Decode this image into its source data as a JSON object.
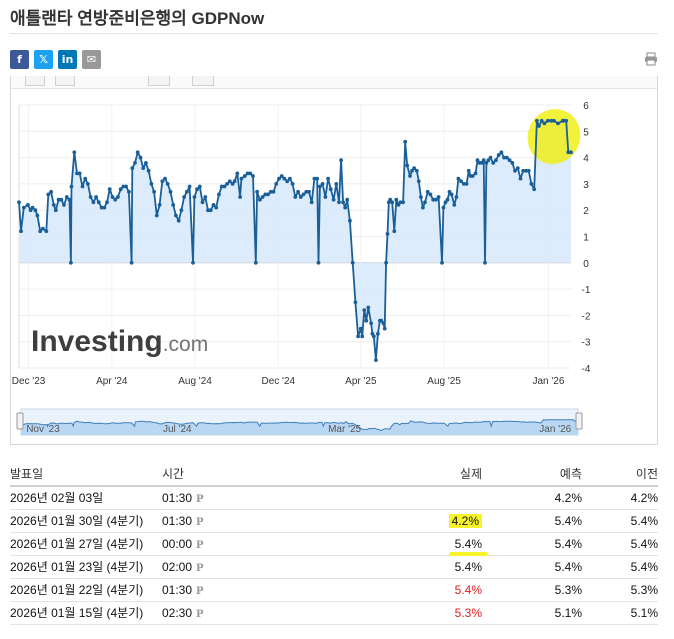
{
  "page": {
    "title": "애틀랜타 연방준비은행의 GDPNow"
  },
  "share_buttons": [
    {
      "name": "facebook",
      "glyph": "f",
      "color": "#3b5998"
    },
    {
      "name": "x",
      "glyph": "𝕏",
      "color": "#1da1f2"
    },
    {
      "name": "linkedin",
      "glyph": "in",
      "color": "#0077b5"
    },
    {
      "name": "email",
      "glyph": "✉",
      "color": "#999999"
    }
  ],
  "icons": {
    "print": "printer-icon"
  },
  "chart_data": {
    "type": "area",
    "title": "",
    "watermark": "Investing.com",
    "xlabel": "",
    "ylabel": "",
    "ylim": [
      -4,
      6
    ],
    "y_ticks": [
      "6",
      "5",
      "4",
      "3",
      "2",
      "1",
      "0",
      "-1",
      "-2",
      "-3",
      "-4"
    ],
    "x_ticks": [
      {
        "label": "Dec '23",
        "x": "2023-12-01"
      },
      {
        "label": "Apr '24",
        "x": "2024-04-01"
      },
      {
        "label": "Aug '24",
        "x": "2024-08-01"
      },
      {
        "label": "Dec '24",
        "x": "2024-12-01"
      },
      {
        "label": "Apr '25",
        "x": "2025-04-01"
      },
      {
        "label": "Aug '25",
        "x": "2025-08-01"
      },
      {
        "label": "Jan '26",
        "x": "2026-01-01"
      }
    ],
    "navigator_ticks": [
      {
        "label": "Nov '23",
        "x": "2023-11-01"
      },
      {
        "label": "Jul '24",
        "x": "2024-07-01"
      },
      {
        "label": "Mar '25",
        "x": "2025-03-01"
      },
      {
        "label": "Jan '26",
        "x": "2026-01-01"
      }
    ],
    "x_range": [
      "2023-11-17",
      "2026-02-03"
    ],
    "line_color": "#1a5f98",
    "fill_color": "#d6e9fb",
    "highlight_color": "#f0ee1a",
    "points": [
      [
        "2023-11-17",
        2.3
      ],
      [
        "2023-11-20",
        1.2
      ],
      [
        "2023-11-24",
        2.1
      ],
      [
        "2023-11-30",
        2.2
      ],
      [
        "2023-12-04",
        2.0
      ],
      [
        "2023-12-07",
        2.1
      ],
      [
        "2023-12-11",
        2.0
      ],
      [
        "2023-12-14",
        1.8
      ],
      [
        "2023-12-18",
        1.2
      ],
      [
        "2023-12-22",
        1.3
      ],
      [
        "2023-12-27",
        1.2
      ],
      [
        "2023-12-30",
        2.6
      ],
      [
        "2024-01-03",
        2.7
      ],
      [
        "2024-01-07",
        2.2
      ],
      [
        "2024-01-10",
        2.0
      ],
      [
        "2024-01-14",
        2.4
      ],
      [
        "2024-01-18",
        2.4
      ],
      [
        "2024-01-22",
        2.2
      ],
      [
        "2024-01-26",
        2.5
      ],
      [
        "2024-01-30",
        2.4
      ],
      [
        "2024-02-01",
        0.0
      ],
      [
        "2024-02-02",
        2.9
      ],
      [
        "2024-02-06",
        4.2
      ],
      [
        "2024-02-10",
        3.4
      ],
      [
        "2024-02-14",
        3.4
      ],
      [
        "2024-02-18",
        2.9
      ],
      [
        "2024-02-22",
        3.2
      ],
      [
        "2024-02-26",
        3.0
      ],
      [
        "2024-03-01",
        2.5
      ],
      [
        "2024-03-05",
        2.3
      ],
      [
        "2024-03-09",
        2.5
      ],
      [
        "2024-03-13",
        2.3
      ],
      [
        "2024-03-17",
        2.1
      ],
      [
        "2024-03-21",
        2.1
      ],
      [
        "2024-03-25",
        2.3
      ],
      [
        "2024-03-29",
        2.8
      ],
      [
        "2024-04-02",
        2.5
      ],
      [
        "2024-04-06",
        2.4
      ],
      [
        "2024-04-10",
        2.5
      ],
      [
        "2024-04-14",
        2.8
      ],
      [
        "2024-04-18",
        2.9
      ],
      [
        "2024-04-22",
        2.9
      ],
      [
        "2024-04-26",
        2.7
      ],
      [
        "2024-04-30",
        0.0
      ],
      [
        "2024-05-01",
        3.6
      ],
      [
        "2024-05-05",
        3.8
      ],
      [
        "2024-05-09",
        4.2
      ],
      [
        "2024-05-13",
        4.0
      ],
      [
        "2024-05-17",
        3.6
      ],
      [
        "2024-05-21",
        3.8
      ],
      [
        "2024-05-25",
        3.5
      ],
      [
        "2024-05-29",
        3.0
      ],
      [
        "2024-06-02",
        2.7
      ],
      [
        "2024-06-06",
        1.8
      ],
      [
        "2024-06-10",
        2.2
      ],
      [
        "2024-06-14",
        3.1
      ],
      [
        "2024-06-18",
        3.2
      ],
      [
        "2024-06-22",
        3.0
      ],
      [
        "2024-06-26",
        2.7
      ],
      [
        "2024-06-30",
        2.2
      ],
      [
        "2024-07-04",
        1.8
      ],
      [
        "2024-07-08",
        1.6
      ],
      [
        "2024-07-12",
        2.0
      ],
      [
        "2024-07-16",
        2.5
      ],
      [
        "2024-07-20",
        2.7
      ],
      [
        "2024-07-24",
        2.9
      ],
      [
        "2024-07-29",
        0.0
      ],
      [
        "2024-07-31",
        2.5
      ],
      [
        "2024-08-04",
        2.8
      ],
      [
        "2024-08-08",
        2.9
      ],
      [
        "2024-08-12",
        2.3
      ],
      [
        "2024-08-16",
        2.5
      ],
      [
        "2024-08-20",
        2.0
      ],
      [
        "2024-08-24",
        2.0
      ],
      [
        "2024-08-28",
        2.2
      ],
      [
        "2024-09-01",
        2.1
      ],
      [
        "2024-09-05",
        2.6
      ],
      [
        "2024-09-09",
        2.9
      ],
      [
        "2024-09-13",
        2.9
      ],
      [
        "2024-09-17",
        3.0
      ],
      [
        "2024-09-21",
        3.1
      ],
      [
        "2024-09-25",
        3.0
      ],
      [
        "2024-09-28",
        3.1
      ],
      [
        "2024-10-02",
        3.4
      ],
      [
        "2024-10-06",
        2.5
      ],
      [
        "2024-10-08",
        3.2
      ],
      [
        "2024-10-13",
        3.3
      ],
      [
        "2024-10-17",
        3.4
      ],
      [
        "2024-10-21",
        3.4
      ],
      [
        "2024-10-25",
        3.3
      ],
      [
        "2024-10-29",
        0.0
      ],
      [
        "2024-10-31",
        2.7
      ],
      [
        "2024-11-04",
        2.4
      ],
      [
        "2024-11-08",
        2.5
      ],
      [
        "2024-11-12",
        2.6
      ],
      [
        "2024-11-16",
        2.6
      ],
      [
        "2024-11-20",
        2.7
      ],
      [
        "2024-11-24",
        2.7
      ],
      [
        "2024-11-28",
        3.0
      ],
      [
        "2024-12-02",
        3.2
      ],
      [
        "2024-12-06",
        3.3
      ],
      [
        "2024-12-10",
        3.2
      ],
      [
        "2024-12-14",
        3.1
      ],
      [
        "2024-12-18",
        3.2
      ],
      [
        "2024-12-22",
        3.0
      ],
      [
        "2024-12-26",
        2.5
      ],
      [
        "2024-12-30",
        2.7
      ],
      [
        "2025-01-03",
        2.5
      ],
      [
        "2025-01-07",
        2.6
      ],
      [
        "2025-01-11",
        2.7
      ],
      [
        "2025-01-15",
        2.7
      ],
      [
        "2025-01-19",
        2.3
      ],
      [
        "2025-01-23",
        3.2
      ],
      [
        "2025-01-27",
        3.2
      ],
      [
        "2025-01-29",
        0.0
      ],
      [
        "2025-01-31",
        2.9
      ],
      [
        "2025-02-04",
        3.0
      ],
      [
        "2025-02-08",
        2.5
      ],
      [
        "2025-02-12",
        3.2
      ],
      [
        "2025-02-16",
        2.8
      ],
      [
        "2025-02-20",
        2.4
      ],
      [
        "2025-02-24",
        3.0
      ],
      [
        "2025-02-28",
        2.3
      ],
      [
        "2025-03-03",
        3.9
      ],
      [
        "2025-03-06",
        2.3
      ],
      [
        "2025-03-09",
        2.1
      ],
      [
        "2025-03-12",
        2.4
      ],
      [
        "2025-03-16",
        1.6
      ],
      [
        "2025-03-20",
        0.0
      ],
      [
        "2025-03-24",
        -1.5
      ],
      [
        "2025-03-28",
        -2.8
      ],
      [
        "2025-04-01",
        -2.5
      ],
      [
        "2025-04-03",
        -2.8
      ],
      [
        "2025-04-06",
        -1.8
      ],
      [
        "2025-04-09",
        -2.2
      ],
      [
        "2025-04-12",
        -1.7
      ],
      [
        "2025-04-16",
        -2.3
      ],
      [
        "2025-04-18",
        -2.7
      ],
      [
        "2025-04-20",
        -2.8
      ],
      [
        "2025-04-23",
        -3.7
      ],
      [
        "2025-04-26",
        -2.7
      ],
      [
        "2025-04-29",
        -2.2
      ],
      [
        "2025-05-01",
        -2.2
      ],
      [
        "2025-05-04",
        -2.3
      ],
      [
        "2025-05-06",
        -2.5
      ],
      [
        "2025-05-08",
        0.0
      ],
      [
        "2025-05-10",
        1.1
      ],
      [
        "2025-05-12",
        2.3
      ],
      [
        "2025-05-14",
        2.4
      ],
      [
        "2025-05-17",
        2.3
      ],
      [
        "2025-05-20",
        1.2
      ],
      [
        "2025-05-23",
        2.4
      ],
      [
        "2025-05-26",
        2.2
      ],
      [
        "2025-05-29",
        2.3
      ],
      [
        "2025-06-02",
        2.3
      ],
      [
        "2025-06-05",
        4.6
      ],
      [
        "2025-06-08",
        3.7
      ],
      [
        "2025-06-12",
        3.3
      ],
      [
        "2025-06-15",
        3.5
      ],
      [
        "2025-06-18",
        3.6
      ],
      [
        "2025-06-22",
        3.5
      ],
      [
        "2025-06-25",
        3.1
      ],
      [
        "2025-06-28",
        2.5
      ],
      [
        "2025-07-01",
        2.1
      ],
      [
        "2025-07-04",
        2.3
      ],
      [
        "2025-07-08",
        2.7
      ],
      [
        "2025-07-12",
        2.6
      ],
      [
        "2025-07-16",
        2.4
      ],
      [
        "2025-07-20",
        2.4
      ],
      [
        "2025-07-24",
        2.5
      ],
      [
        "2025-07-29",
        0.0
      ],
      [
        "2025-07-31",
        2.1
      ],
      [
        "2025-08-03",
        2.3
      ],
      [
        "2025-08-06",
        2.4
      ],
      [
        "2025-08-09",
        2.7
      ],
      [
        "2025-08-12",
        2.6
      ],
      [
        "2025-08-16",
        2.2
      ],
      [
        "2025-08-19",
        2.5
      ],
      [
        "2025-08-22",
        3.2
      ],
      [
        "2025-08-26",
        3.1
      ],
      [
        "2025-08-30",
        3.0
      ],
      [
        "2025-09-03",
        3.0
      ],
      [
        "2025-09-06",
        3.5
      ],
      [
        "2025-09-09",
        3.3
      ],
      [
        "2025-09-12",
        3.3
      ],
      [
        "2025-09-16",
        3.4
      ],
      [
        "2025-09-19",
        3.9
      ],
      [
        "2025-09-22",
        3.8
      ],
      [
        "2025-09-25",
        3.8
      ],
      [
        "2025-09-28",
        3.9
      ],
      [
        "2025-09-30",
        0.0
      ],
      [
        "2025-10-02",
        3.8
      ],
      [
        "2025-10-05",
        3.9
      ],
      [
        "2025-10-08",
        4.0
      ],
      [
        "2025-10-12",
        3.8
      ],
      [
        "2025-10-16",
        3.9
      ],
      [
        "2025-10-20",
        4.1
      ],
      [
        "2025-10-24",
        4.2
      ],
      [
        "2025-10-28",
        4.0
      ],
      [
        "2025-11-01",
        4.0
      ],
      [
        "2025-11-05",
        3.9
      ],
      [
        "2025-11-09",
        3.8
      ],
      [
        "2025-11-13",
        3.5
      ],
      [
        "2025-11-17",
        3.6
      ],
      [
        "2025-11-21",
        3.2
      ],
      [
        "2025-11-25",
        3.5
      ],
      [
        "2025-11-29",
        3.5
      ],
      [
        "2025-12-03",
        3.5
      ],
      [
        "2025-12-07",
        3.0
      ],
      [
        "2025-12-11",
        2.8
      ],
      [
        "2025-12-15",
        5.4
      ],
      [
        "2025-12-18",
        5.2
      ],
      [
        "2025-12-22",
        5.4
      ],
      [
        "2025-12-26",
        5.3
      ],
      [
        "2025-12-31",
        5.4
      ],
      [
        "2026-01-05",
        5.4
      ],
      [
        "2026-01-09",
        5.4
      ],
      [
        "2026-01-15",
        5.3
      ],
      [
        "2026-01-22",
        5.4
      ],
      [
        "2026-01-23",
        5.4
      ],
      [
        "2026-01-27",
        5.4
      ],
      [
        "2026-01-30",
        4.2
      ],
      [
        "2026-02-03",
        4.2
      ]
    ],
    "highlight_points_from": "2025-12-15"
  },
  "table": {
    "headers": {
      "date": "발표일",
      "time": "시간",
      "actual": "실제",
      "forecast": "예측",
      "previous": "이전"
    },
    "prelim_mark": "P",
    "rows": [
      {
        "date": "2026년 02월 03일",
        "time": "01:30",
        "actual": "",
        "forecast": "4.2%",
        "previous": "4.2%",
        "actual_style": "",
        "highlight": ""
      },
      {
        "date": "2026년 01월 30일 (4분기)",
        "time": "01:30",
        "actual": "4.2%",
        "forecast": "5.4%",
        "previous": "5.4%",
        "actual_style": "normal",
        "highlight": "box"
      },
      {
        "date": "2026년 01월 27일 (4분기)",
        "time": "00:00",
        "actual": "5.4%",
        "forecast": "5.4%",
        "previous": "5.4%",
        "actual_style": "normal",
        "highlight": "underline"
      },
      {
        "date": "2026년 01월 23일 (4분기)",
        "time": "02:00",
        "actual": "5.4%",
        "forecast": "5.4%",
        "previous": "5.4%",
        "actual_style": "normal",
        "highlight": ""
      },
      {
        "date": "2026년 01월 22일 (4분기)",
        "time": "01:30",
        "actual": "5.4%",
        "forecast": "5.3%",
        "previous": "5.3%",
        "actual_style": "red",
        "highlight": ""
      },
      {
        "date": "2026년 01월 15일 (4분기)",
        "time": "02:30",
        "actual": "5.3%",
        "forecast": "5.1%",
        "previous": "5.1%",
        "actual_style": "red",
        "highlight": ""
      }
    ]
  }
}
